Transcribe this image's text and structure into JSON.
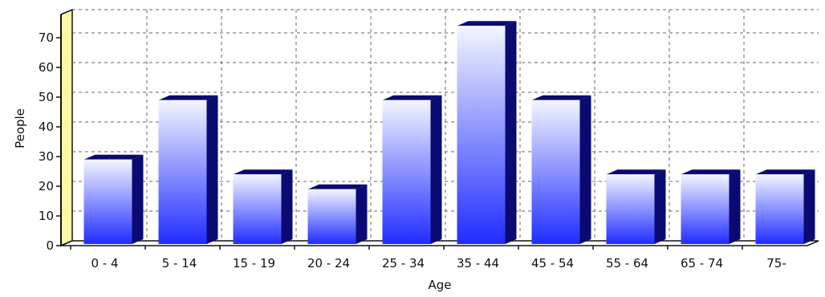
{
  "chart_data": {
    "type": "bar",
    "categories": [
      "0 - 4",
      "5 - 14",
      "15 - 19",
      "20 - 24",
      "25 - 34",
      "35 - 44",
      "45 - 54",
      "55 - 64",
      "65 - 74",
      "75-"
    ],
    "values": [
      29,
      49,
      24,
      19,
      49,
      74,
      49,
      24,
      24,
      24
    ],
    "yticks": [
      "0",
      "10",
      "20",
      "30",
      "40",
      "50",
      "60",
      "70"
    ],
    "xlabel": "Age",
    "ylabel": "People",
    "ylim": [
      0,
      70
    ],
    "grid": true,
    "style": "3d-gradient",
    "colors": {
      "bar_top": "#f4f6ff",
      "bar_bottom": "#1f2cff",
      "bar_side": "#0a0a72",
      "back_wall": "#ffffff",
      "left_wall": "#fff7a6",
      "grid": "#666666"
    }
  }
}
